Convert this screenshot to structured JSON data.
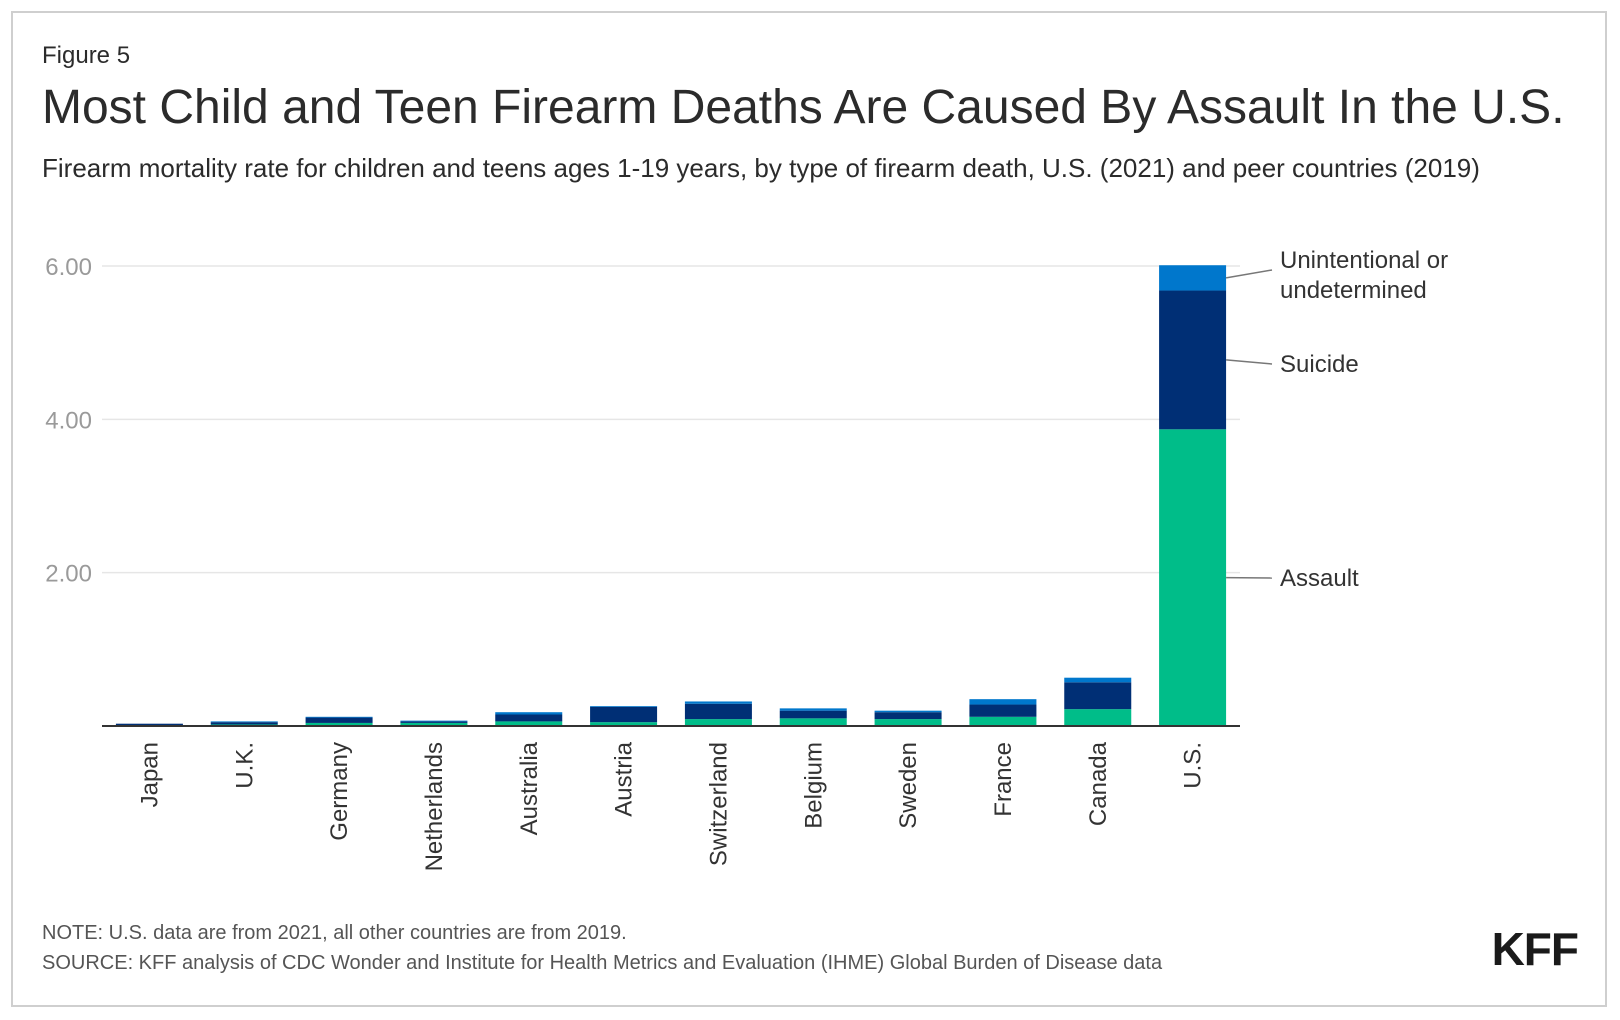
{
  "figure_label": "Figure 5",
  "title": "Most Child and Teen Firearm Deaths Are Caused By Assault In the U.S.",
  "subtitle": "Firearm mortality rate for children and teens ages 1-19 years, by type of firearm death, U.S. (2021) and peer countries (2019)",
  "note": "NOTE: U.S. data are from 2021, all other countries are from 2019.",
  "source": "SOURCE: KFF analysis of CDC Wonder and Institute for Health Metrics and Evaluation (IHME) Global Burden of Disease data",
  "logo": "KFF",
  "colors": {
    "assault": "#00bd89",
    "suicide": "#002f75",
    "unintentional": "#0077cc",
    "gridline": "#e6e6e6",
    "axis": "#333333",
    "tick_text": "#9a9a9a"
  },
  "chart_data": {
    "type": "bar",
    "stacked": true,
    "categories": [
      "Japan",
      "U.K.",
      "Germany",
      "Netherlands",
      "Australia",
      "Austria",
      "Switzerland",
      "Belgium",
      "Sweden",
      "France",
      "Canada",
      "U.S."
    ],
    "series": [
      {
        "name": "Assault",
        "values": [
          0.01,
          0.02,
          0.04,
          0.04,
          0.06,
          0.05,
          0.09,
          0.1,
          0.09,
          0.12,
          0.22,
          3.87
        ]
      },
      {
        "name": "Suicide",
        "values": [
          0.02,
          0.03,
          0.07,
          0.02,
          0.09,
          0.2,
          0.2,
          0.1,
          0.09,
          0.16,
          0.35,
          1.81
        ]
      },
      {
        "name": "Unintentional or undetermined",
        "values": [
          0.0,
          0.01,
          0.01,
          0.01,
          0.03,
          0.01,
          0.03,
          0.03,
          0.02,
          0.07,
          0.06,
          0.33
        ]
      }
    ],
    "ylim": [
      0,
      6
    ],
    "yticks": [
      2,
      4,
      6
    ],
    "ytick_labels": [
      "2.00",
      "4.00",
      "6.00"
    ],
    "legend_placement": "right, labels beside U.S. bar",
    "grid": true
  }
}
